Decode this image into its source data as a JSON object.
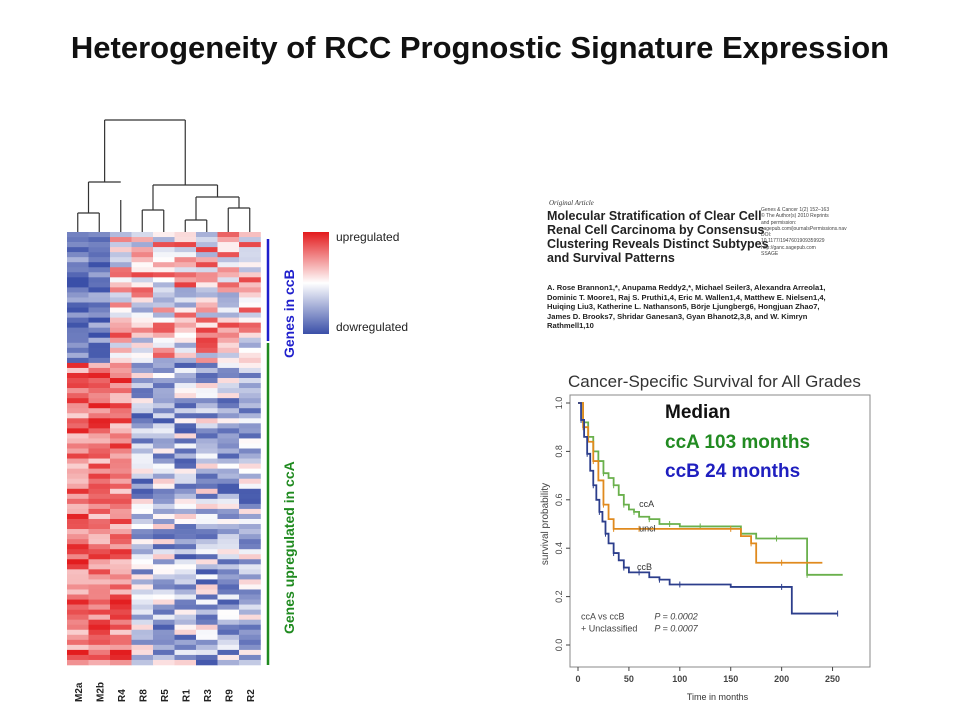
{
  "title": "Heterogeneity of RCC Prognostic Signature Expression",
  "heatmap": {
    "columns": [
      "M2a",
      "M2b",
      "R4",
      "R8",
      "R5",
      "R1",
      "R3",
      "R9",
      "R2"
    ],
    "legend_up": "upregulated",
    "legend_down": "dowregulated",
    "group_ccB": "Genes in ccB",
    "group_ccA": "Genes upregulated in ccA",
    "colors": {
      "high": "#e31a1c",
      "mid": "#ffffff",
      "low": "#3a4fa8",
      "ccB_bar": "#1f1fcc",
      "ccA_bar": "#1f8a1f"
    }
  },
  "paper": {
    "label": "Original Article",
    "title": "Molecular Stratification of Clear Cell Renal Cell Carcinoma by Consensus Clustering Reveals Distinct Subtypes and Survival Patterns",
    "meta": "Genes & Cancer 1(2) 152–163 © The Author(s) 2010 Reprints and permission: sagepub.com/journalsPermissions.nav DOI: 10.1177/1947601909359929 http://ganc.sagepub.com SSAGE",
    "authors": "A. Rose Brannon1,*, Anupama Reddy2,*, Michael Seiler3, Alexandra Arreola1, Dominic T. Moore1, Raj S. Pruthi1,4, Eric M. Wallen1,4, Matthew E. Nielsen1,4, Huiqing Liu3, Katherine L. Nathanson5, Börje Ljungberg6, Hongjuan Zhao7, James D. Brooks7, Shridar Ganesan3, Gyan Bhanot2,3,8, and W. Kimryn Rathmell1,10"
  },
  "median": {
    "heading": "Median",
    "ccA": "ccA 103 months",
    "ccB": "ccB 24 months",
    "ccA_color": "#228b22",
    "ccB_color": "#1f1fbf"
  },
  "chart_data": {
    "type": "line",
    "title": "Cancer-Specific Survival for All Grades",
    "xlabel": "Time in months",
    "ylabel": "survival probability",
    "xlim": [
      0,
      275
    ],
    "ylim": [
      0,
      1.0
    ],
    "x_ticks": [
      0,
      50,
      100,
      150,
      200,
      250
    ],
    "y_ticks": [
      "0.0",
      "0.2",
      "0.4",
      "0.6",
      "0.8",
      "1.0"
    ],
    "series": [
      {
        "name": "ccA",
        "color": "#6ab04c",
        "x": [
          0,
          5,
          10,
          15,
          20,
          25,
          30,
          35,
          40,
          45,
          50,
          55,
          60,
          70,
          80,
          90,
          100,
          120,
          140,
          160,
          175,
          195,
          210,
          225,
          260
        ],
        "y": [
          1.0,
          0.92,
          0.86,
          0.8,
          0.76,
          0.71,
          0.69,
          0.66,
          0.62,
          0.58,
          0.56,
          0.55,
          0.53,
          0.52,
          0.5,
          0.5,
          0.49,
          0.49,
          0.49,
          0.46,
          0.44,
          0.44,
          0.44,
          0.29,
          0.29
        ]
      },
      {
        "name": "uncl",
        "color": "#e08a1e",
        "x": [
          0,
          5,
          10,
          15,
          20,
          25,
          30,
          35,
          40,
          60,
          100,
          150,
          160,
          170,
          175,
          200,
          240
        ],
        "y": [
          1.0,
          0.9,
          0.84,
          0.76,
          0.68,
          0.58,
          0.52,
          0.48,
          0.48,
          0.48,
          0.48,
          0.48,
          0.45,
          0.42,
          0.34,
          0.34,
          0.34
        ]
      },
      {
        "name": "ccB",
        "color": "#2c3e8c",
        "x": [
          0,
          3,
          6,
          9,
          12,
          15,
          18,
          21,
          24,
          27,
          30,
          35,
          40,
          45,
          50,
          60,
          70,
          80,
          90,
          100,
          150,
          200,
          210,
          255
        ],
        "y": [
          1.0,
          0.93,
          0.86,
          0.79,
          0.72,
          0.66,
          0.6,
          0.55,
          0.51,
          0.46,
          0.42,
          0.38,
          0.35,
          0.32,
          0.3,
          0.3,
          0.28,
          0.27,
          0.25,
          0.25,
          0.24,
          0.24,
          0.13,
          0.13
        ]
      }
    ],
    "curve_labels": [
      "ccA",
      "uncl",
      "ccB"
    ],
    "stats": [
      {
        "label": "ccA vs ccB",
        "p": "P = 0.0002"
      },
      {
        "label": "+ Unclassified",
        "p": "P = 0.0007"
      }
    ]
  }
}
